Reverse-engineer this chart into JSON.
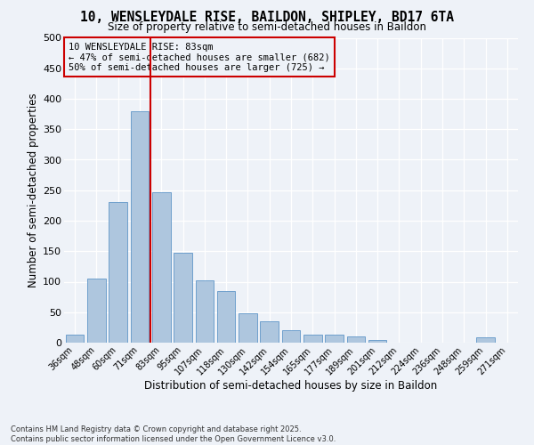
{
  "title_line1": "10, WENSLEYDALE RISE, BAILDON, SHIPLEY, BD17 6TA",
  "title_line2": "Size of property relative to semi-detached houses in Baildon",
  "xlabel": "Distribution of semi-detached houses by size in Baildon",
  "ylabel": "Number of semi-detached properties",
  "footnote_line1": "Contains HM Land Registry data © Crown copyright and database right 2025.",
  "footnote_line2": "Contains public sector information licensed under the Open Government Licence v3.0.",
  "annotation_line1": "10 WENSLEYDALE RISE: 83sqm",
  "annotation_line2": "← 47% of semi-detached houses are smaller (682)",
  "annotation_line3": "50% of semi-detached houses are larger (725) →",
  "bar_color": "#aec6de",
  "bar_edge_color": "#6096c8",
  "vline_color": "#cc0000",
  "background_color": "#eef2f8",
  "categories": [
    "36sqm",
    "48sqm",
    "60sqm",
    "71sqm",
    "83sqm",
    "95sqm",
    "107sqm",
    "118sqm",
    "130sqm",
    "142sqm",
    "154sqm",
    "165sqm",
    "177sqm",
    "189sqm",
    "201sqm",
    "212sqm",
    "224sqm",
    "236sqm",
    "248sqm",
    "259sqm",
    "271sqm"
  ],
  "values": [
    13,
    105,
    230,
    380,
    247,
    148,
    102,
    85,
    48,
    35,
    20,
    13,
    13,
    10,
    5,
    0,
    0,
    0,
    0,
    9,
    0
  ],
  "ylim": [
    0,
    500
  ],
  "yticks": [
    0,
    50,
    100,
    150,
    200,
    250,
    300,
    350,
    400,
    450,
    500
  ],
  "vline_x_index": 3.5
}
